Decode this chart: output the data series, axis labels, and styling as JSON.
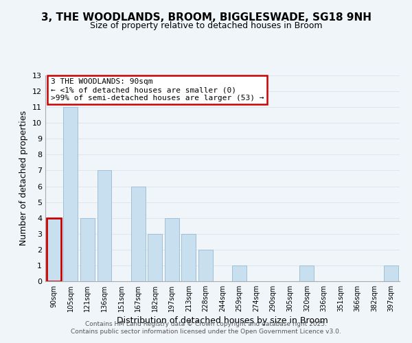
{
  "title": "3, THE WOODLANDS, BROOM, BIGGLESWADE, SG18 9NH",
  "subtitle": "Size of property relative to detached houses in Broom",
  "xlabel": "Distribution of detached houses by size in Broom",
  "ylabel": "Number of detached properties",
  "bar_color": "#c8dff0",
  "bar_edge_color": "#a0bfd8",
  "categories": [
    "90sqm",
    "105sqm",
    "121sqm",
    "136sqm",
    "151sqm",
    "167sqm",
    "182sqm",
    "197sqm",
    "213sqm",
    "228sqm",
    "244sqm",
    "259sqm",
    "274sqm",
    "290sqm",
    "305sqm",
    "320sqm",
    "336sqm",
    "351sqm",
    "366sqm",
    "382sqm",
    "397sqm"
  ],
  "values": [
    4,
    11,
    4,
    7,
    0,
    6,
    3,
    4,
    3,
    2,
    0,
    1,
    0,
    0,
    0,
    1,
    0,
    0,
    0,
    0,
    1
  ],
  "ylim": [
    0,
    13
  ],
  "yticks": [
    0,
    1,
    2,
    3,
    4,
    5,
    6,
    7,
    8,
    9,
    10,
    11,
    12,
    13
  ],
  "annotation_box_color": "#ffffff",
  "annotation_border_color": "#cc0000",
  "annotation_line1": "3 THE WOODLANDS: 90sqm",
  "annotation_line2": "← <1% of detached houses are smaller (0)",
  "annotation_line3": ">99% of semi-detached houses are larger (53) →",
  "highlight_bar_index": 0,
  "highlight_bar_color": "#cc0000",
  "footer_line1": "Contains HM Land Registry data © Crown copyright and database right 2025.",
  "footer_line2": "Contains public sector information licensed under the Open Government Licence v3.0.",
  "background_color": "#f0f5f9",
  "grid_color": "#dce8f0",
  "title_fontsize": 11,
  "subtitle_fontsize": 9
}
